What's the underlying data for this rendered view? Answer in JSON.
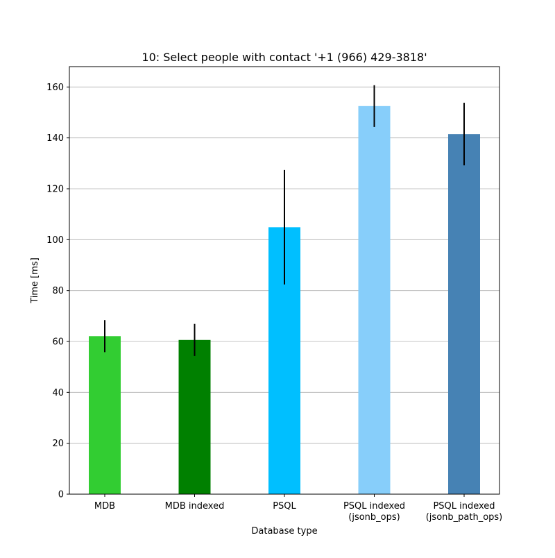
{
  "chart_data": {
    "type": "bar",
    "title": "10: Select people with contact '+1 (966) 429-3818'",
    "xlabel": "Database type",
    "ylabel": "Time [ms]",
    "ylim": [
      0,
      168
    ],
    "yticks": [
      0,
      20,
      40,
      60,
      80,
      100,
      120,
      140,
      160
    ],
    "grid": "horizontal",
    "categories": [
      "MDB",
      "MDB indexed",
      "PSQL",
      "PSQL indexed\n(jsonb_ops)",
      "PSQL indexed\n(jsonb_path_ops)"
    ],
    "values": [
      62.1,
      60.6,
      104.9,
      152.5,
      141.5
    ],
    "errors": [
      6.3,
      6.3,
      22.5,
      8.2,
      12.3
    ],
    "colors": [
      "#32CD32",
      "#008000",
      "#00BFFF",
      "#87CEFA",
      "#4682B4"
    ],
    "error_color": "#000000",
    "grid_color": "#b0b0b0"
  }
}
